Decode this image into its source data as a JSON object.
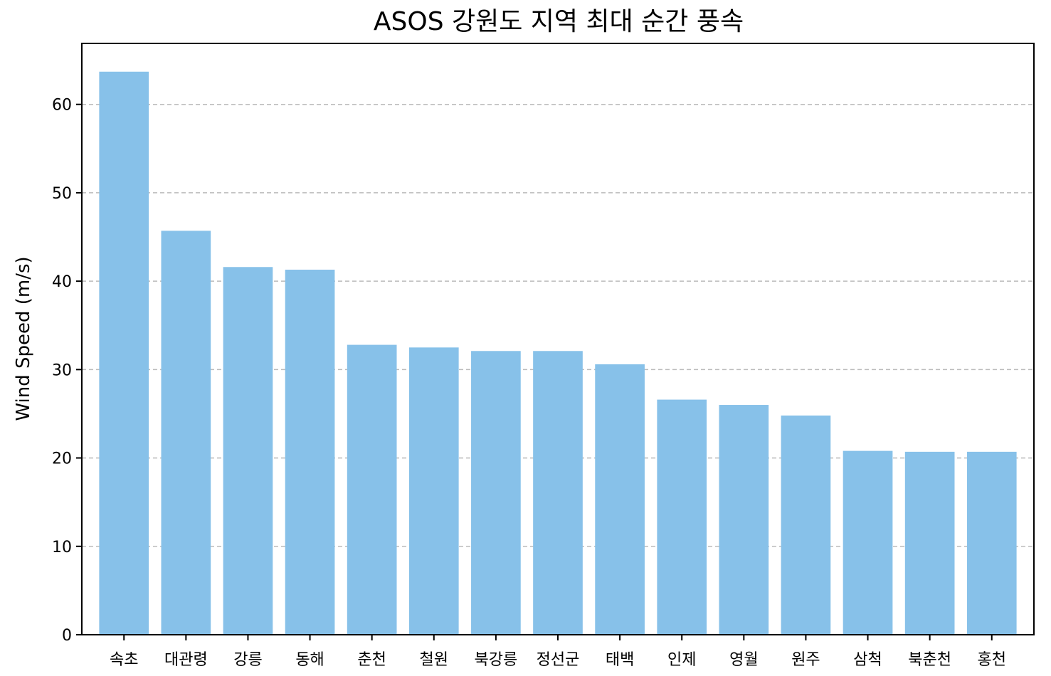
{
  "chart_data": {
    "type": "bar",
    "title": "ASOS 강원도 지역 최대 순간 풍속",
    "xlabel": "",
    "ylabel": "Wind Speed (m/s)",
    "categories": [
      "속초",
      "대관령",
      "강릉",
      "동해",
      "춘천",
      "철원",
      "북강릉",
      "정선군",
      "태백",
      "인제",
      "영월",
      "원주",
      "삼척",
      "북춘천",
      "홍천"
    ],
    "values": [
      63.7,
      45.7,
      41.6,
      41.3,
      32.8,
      32.5,
      32.1,
      32.1,
      30.6,
      26.6,
      26.0,
      24.8,
      20.8,
      20.7,
      20.7
    ],
    "ylim": [
      0,
      66.9
    ],
    "yticks": [
      0,
      10,
      20,
      30,
      40,
      50,
      60
    ],
    "ytick_labels": [
      "0",
      "10",
      "20",
      "30",
      "40",
      "50",
      "60"
    ],
    "grid": "y-dashed",
    "bar_color": "#87C1E9",
    "grid_color": "#bbbbbb",
    "axis_color": "#000000"
  }
}
